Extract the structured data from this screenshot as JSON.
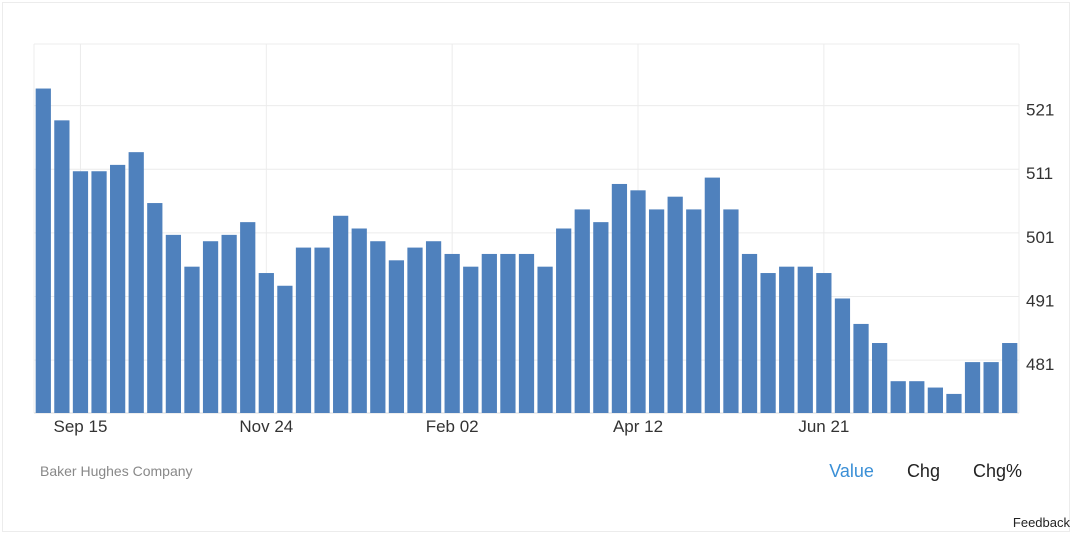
{
  "chart_data": {
    "type": "bar",
    "title": "",
    "xlabel": "",
    "ylabel": "",
    "x_tick_labels": [
      "Sep 15",
      "Nov 24",
      "Feb 02",
      "Apr 12",
      "Jun 21"
    ],
    "x_tick_indices": [
      2.5,
      12.5,
      22.5,
      32.5,
      42.5
    ],
    "y_ticks": [
      481,
      491,
      501,
      511,
      521
    ],
    "ylim": [
      473,
      531
    ],
    "grid": true,
    "color": "#4f81bd",
    "values": [
      524,
      519,
      511,
      511,
      512,
      514,
      506,
      501,
      496,
      500,
      501,
      503,
      495,
      493,
      499,
      499,
      504,
      502,
      500,
      497,
      499,
      500,
      498,
      496,
      498,
      498,
      498,
      496,
      502,
      505,
      503,
      509,
      508,
      505,
      507,
      505,
      510,
      505,
      498,
      495,
      496,
      496,
      495,
      491,
      487,
      484,
      478,
      478,
      477,
      476,
      481,
      481,
      484
    ]
  },
  "source": "Baker Hughes Company",
  "tabs": [
    {
      "label": "Value",
      "active": true
    },
    {
      "label": "Chg",
      "active": false
    },
    {
      "label": "Chg%",
      "active": false
    }
  ],
  "feedback": "Feedback"
}
